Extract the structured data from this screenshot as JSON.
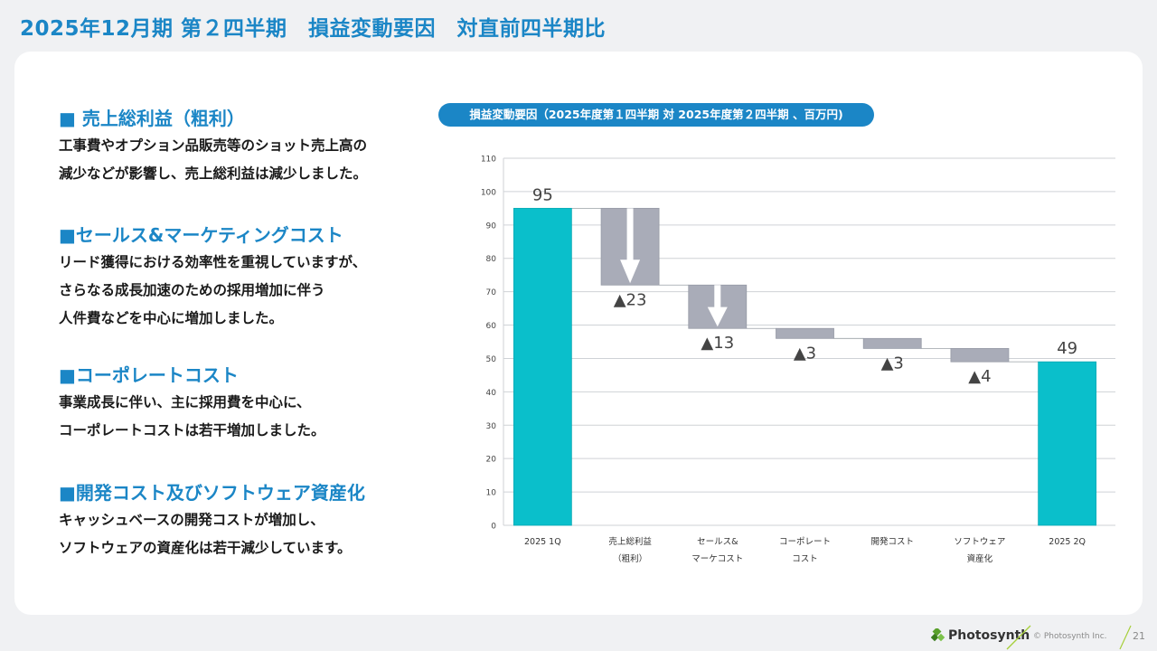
{
  "page_title": "2025年12月期 第２四半期　損益変動要因　対直前四半期比",
  "sections": [
    {
      "heading": "■ 売上総利益（粗利）",
      "lines": [
        "工事費やオプション品販売等のショット売上高の",
        "減少などが影響し、売上総利益は減少しました。"
      ]
    },
    {
      "heading": "■セールス&マーケティングコスト",
      "lines": [
        "リード獲得における効率性を重視していますが、",
        "さらなる成長加速のための採用増加に伴う",
        "人件費などを中心に増加しました。"
      ]
    },
    {
      "heading": "■コーポレートコスト",
      "lines": [
        "事業成長に伴い、主に採用費を中心に、",
        "コーポレートコストは若干増加しました。"
      ]
    },
    {
      "heading": "■開発コスト及びソフトウェア資産化",
      "lines": [
        "キャッシュベースの開発コストが増加し、",
        "ソフトウェアの資産化は若干減少しています。"
      ]
    }
  ],
  "chart_pill": "損益変動要因（2025年度第１四半期 対 2025年度第２四半期 、百万円)",
  "chart_data": {
    "type": "waterfall",
    "title": "損益変動要因（2025年度第１四半期 対 2025年度第２四半期 、百万円)",
    "ylim": [
      0,
      110
    ],
    "yticks": [
      0,
      10,
      20,
      30,
      40,
      50,
      60,
      70,
      80,
      90,
      100,
      110
    ],
    "grid": true,
    "categories": [
      [
        "2025 1Q"
      ],
      [
        "売上総利益",
        "（粗利）"
      ],
      [
        "セールス&",
        "マーケコスト"
      ],
      [
        "コーポレート",
        "コスト"
      ],
      [
        "開発コスト"
      ],
      [
        "ソフトウェア",
        "資産化"
      ],
      [
        "2025 2Q"
      ]
    ],
    "bars": [
      {
        "kind": "total",
        "start": 0,
        "end": 95,
        "label": "95"
      },
      {
        "kind": "delta",
        "start": 95,
        "end": 72,
        "label": "▲23",
        "arrow": true
      },
      {
        "kind": "delta",
        "start": 72,
        "end": 59,
        "label": "▲13",
        "arrow": true
      },
      {
        "kind": "delta",
        "start": 59,
        "end": 56,
        "label": "▲3"
      },
      {
        "kind": "delta",
        "start": 56,
        "end": 53,
        "label": "▲3"
      },
      {
        "kind": "delta",
        "start": 53,
        "end": 49,
        "label": "▲4"
      },
      {
        "kind": "total",
        "start": 0,
        "end": 49,
        "label": "49"
      }
    ],
    "colors": {
      "total": "#0abfcb",
      "delta": "#a9acb8",
      "grid": "#cfd2d6",
      "arrow": "#ffffff"
    }
  },
  "footer": {
    "brand": "Photosynth",
    "copyright": "© Photosynth Inc.",
    "page_number": "21"
  },
  "colors": {
    "accent": "#1b86c6",
    "background": "#f0f1f3",
    "card": "#ffffff"
  }
}
